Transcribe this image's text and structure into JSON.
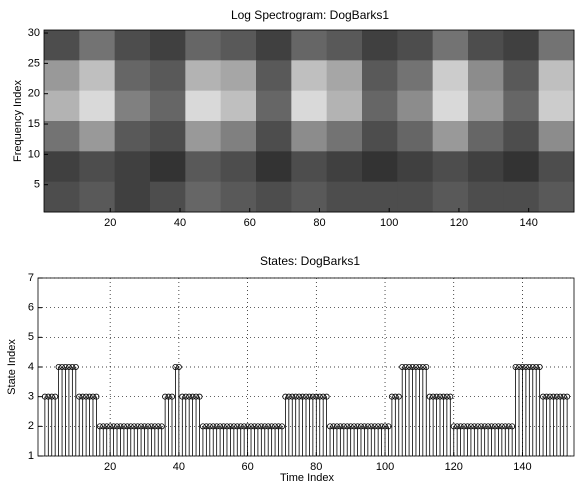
{
  "chart_data": [
    {
      "type": "image",
      "title": "Log Spectrogram: DogBarks1",
      "ylabel": "Frequency Index",
      "xlim": [
        1,
        153
      ],
      "ylim": [
        0.5,
        30.5
      ],
      "xticks": [
        20,
        40,
        60,
        80,
        100,
        120,
        140
      ],
      "yticks": [
        5,
        10,
        15,
        20,
        25,
        30
      ],
      "values": [
        [
          0.3,
          0.45,
          0.3,
          0.25,
          0.4,
          0.35,
          0.25,
          0.4,
          0.35,
          0.25,
          0.3,
          0.45,
          0.3,
          0.25,
          0.45
        ],
        [
          0.6,
          0.75,
          0.4,
          0.35,
          0.7,
          0.65,
          0.35,
          0.75,
          0.65,
          0.35,
          0.45,
          0.8,
          0.55,
          0.35,
          0.75
        ],
        [
          0.7,
          0.85,
          0.5,
          0.4,
          0.85,
          0.75,
          0.4,
          0.85,
          0.7,
          0.4,
          0.55,
          0.85,
          0.6,
          0.4,
          0.8
        ],
        [
          0.45,
          0.6,
          0.35,
          0.3,
          0.6,
          0.5,
          0.3,
          0.55,
          0.45,
          0.3,
          0.4,
          0.6,
          0.4,
          0.3,
          0.55
        ],
        [
          0.25,
          0.3,
          0.25,
          0.2,
          0.35,
          0.3,
          0.2,
          0.3,
          0.25,
          0.2,
          0.25,
          0.3,
          0.25,
          0.2,
          0.3
        ],
        [
          0.3,
          0.35,
          0.25,
          0.3,
          0.4,
          0.35,
          0.3,
          0.35,
          0.3,
          0.3,
          0.3,
          0.35,
          0.3,
          0.3,
          0.35
        ]
      ]
    },
    {
      "type": "stem",
      "title": "States: DogBarks1",
      "xlabel": "Time Index",
      "ylabel": "State Index",
      "xlim": [
        -1,
        155
      ],
      "ylim": [
        1,
        7
      ],
      "xticks": [
        20,
        40,
        60,
        80,
        100,
        120,
        140
      ],
      "yticks": [
        1,
        2,
        3,
        4,
        5,
        6,
        7
      ],
      "grid": true,
      "color": "#000000",
      "x": [
        1,
        2,
        3,
        4,
        5,
        6,
        7,
        8,
        9,
        10,
        11,
        12,
        13,
        14,
        15,
        16,
        17,
        18,
        19,
        20,
        21,
        22,
        23,
        24,
        25,
        26,
        27,
        28,
        29,
        30,
        31,
        32,
        33,
        34,
        35,
        36,
        37,
        38,
        39,
        40,
        41,
        42,
        43,
        44,
        45,
        46,
        47,
        48,
        49,
        50,
        51,
        52,
        53,
        54,
        55,
        56,
        57,
        58,
        59,
        60,
        61,
        62,
        63,
        64,
        65,
        66,
        67,
        68,
        69,
        70,
        71,
        72,
        73,
        74,
        75,
        76,
        77,
        78,
        79,
        80,
        81,
        82,
        83,
        84,
        85,
        86,
        87,
        88,
        89,
        90,
        91,
        92,
        93,
        94,
        95,
        96,
        97,
        98,
        99,
        100,
        101,
        102,
        103,
        104,
        105,
        106,
        107,
        108,
        109,
        110,
        111,
        112,
        113,
        114,
        115,
        116,
        117,
        118,
        119,
        120,
        121,
        122,
        123,
        124,
        125,
        126,
        127,
        128,
        129,
        130,
        131,
        132,
        133,
        134,
        135,
        136,
        137,
        138,
        139,
        140,
        141,
        142,
        143,
        144,
        145,
        146,
        147,
        148,
        149,
        150,
        151,
        152,
        153
      ],
      "values": [
        3,
        3,
        3,
        3,
        4,
        4,
        4,
        4,
        4,
        4,
        3,
        3,
        3,
        3,
        3,
        3,
        2,
        2,
        2,
        2,
        2,
        2,
        2,
        2,
        2,
        2,
        2,
        2,
        2,
        2,
        2,
        2,
        2,
        2,
        2,
        3,
        3,
        3,
        4,
        4,
        3,
        3,
        3,
        3,
        3,
        3,
        2,
        2,
        2,
        2,
        2,
        2,
        2,
        2,
        2,
        2,
        2,
        2,
        2,
        2,
        2,
        2,
        2,
        2,
        2,
        2,
        2,
        2,
        2,
        2,
        3,
        3,
        3,
        3,
        3,
        3,
        3,
        3,
        3,
        3,
        3,
        3,
        3,
        2,
        2,
        2,
        2,
        2,
        2,
        2,
        2,
        2,
        2,
        2,
        2,
        2,
        2,
        2,
        2,
        2,
        2,
        3,
        3,
        3,
        4,
        4,
        4,
        4,
        4,
        4,
        4,
        4,
        3,
        3,
        3,
        3,
        3,
        3,
        3,
        2,
        2,
        2,
        2,
        2,
        2,
        2,
        2,
        2,
        2,
        2,
        2,
        2,
        2,
        2,
        2,
        2,
        2,
        4,
        4,
        4,
        4,
        4,
        4,
        4,
        4,
        3,
        3,
        3,
        3,
        3,
        3,
        3,
        3
      ]
    }
  ]
}
